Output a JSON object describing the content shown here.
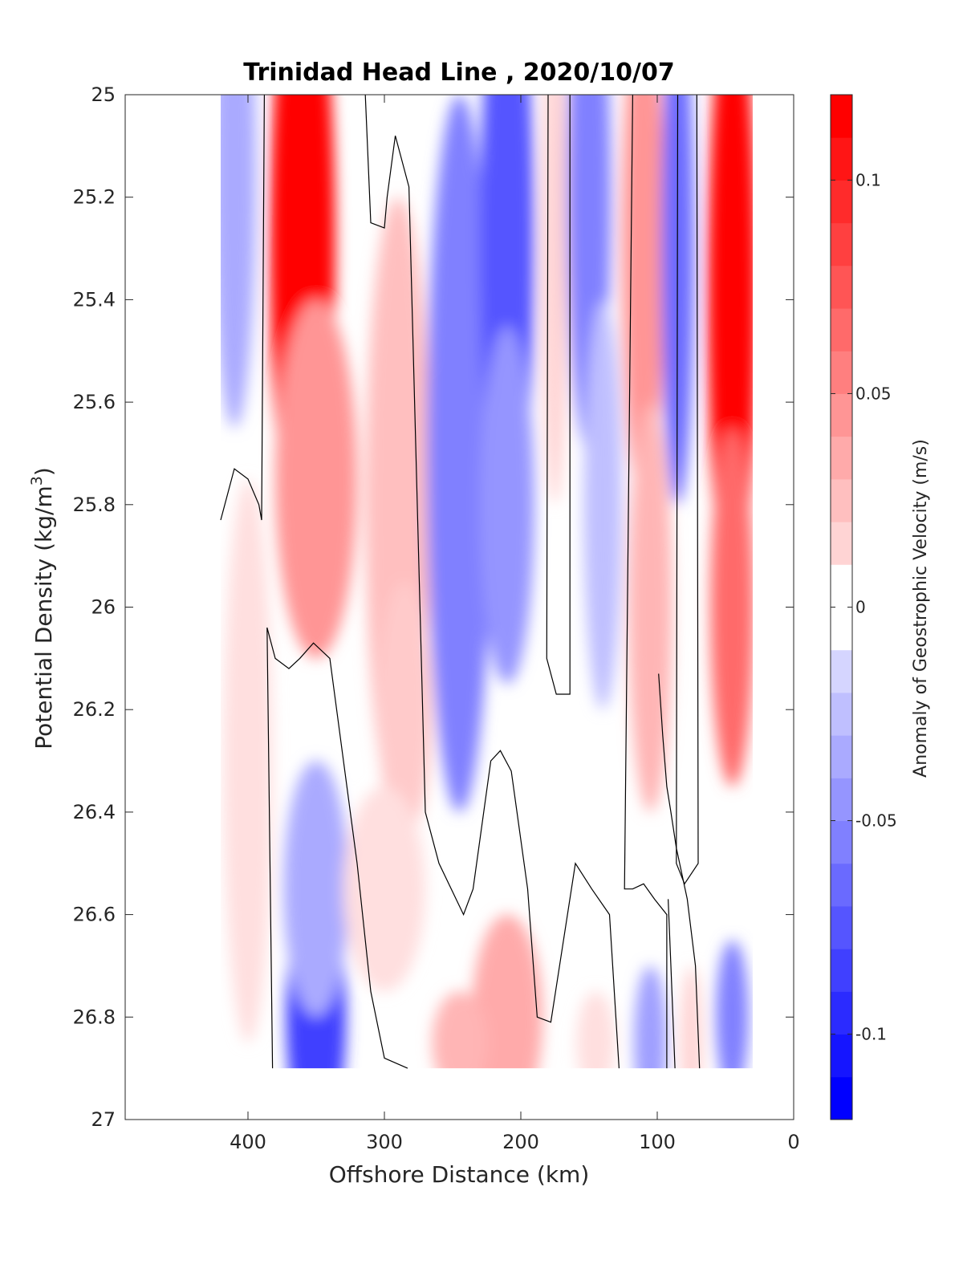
{
  "chart_data": {
    "type": "heatmap",
    "title": "Trinidad Head Line , 2020/10/07",
    "xlabel": "Offshore Distance (km)",
    "ylabel": "Potential Density (kg/m",
    "ylabel_sup": "3",
    "ylabel_close": ")",
    "colorbar_label": "Anomaly of Geostrophic Velocity (m/s)",
    "xlim": [
      490,
      0
    ],
    "ylim": [
      25,
      27
    ],
    "x_reversed": true,
    "y_reversed": true,
    "x_ticks": [
      400,
      300,
      200,
      100,
      0
    ],
    "x_tick_labels": [
      "400",
      "300",
      "200",
      "100",
      "0"
    ],
    "y_ticks": [
      25,
      25.2,
      25.4,
      25.6,
      25.8,
      26,
      26.2,
      26.4,
      26.6,
      26.8,
      27
    ],
    "y_tick_labels": [
      "25",
      "25.2",
      "25.4",
      "25.6",
      "25.8",
      "26",
      "26.2",
      "26.4",
      "26.6",
      "26.8",
      "27"
    ],
    "colorbar_range": [
      -0.12,
      0.12
    ],
    "colorbar_levels": 24,
    "colorbar_ticks": [
      0.1,
      0.05,
      0,
      -0.05,
      -0.1
    ],
    "colorbar_tick_labels": [
      "0.1",
      "0.05",
      "0",
      "-0.05",
      "-0.1"
    ],
    "colormap": "blue-white-red",
    "colors": {
      "negative": "#0000ff",
      "zero": "#ffffff",
      "positive": "#ff0000"
    },
    "data_extent": {
      "x": [
        420,
        30
      ],
      "y": [
        25,
        26.9
      ]
    },
    "grid": false,
    "features": [
      {
        "x": 410,
        "y": 25.15,
        "value": -0.04,
        "rx": 16,
        "ry": 0.5
      },
      {
        "x": 360,
        "y": 25.3,
        "value": 0.12,
        "rx": 24,
        "ry": 0.6
      },
      {
        "x": 350,
        "y": 25.75,
        "value": 0.05,
        "rx": 30,
        "ry": 0.35
      },
      {
        "x": 290,
        "y": 25.8,
        "value": 0.03,
        "rx": 24,
        "ry": 0.6
      },
      {
        "x": 285,
        "y": 26.2,
        "value": 0.025,
        "rx": 20,
        "ry": 0.25
      },
      {
        "x": 245,
        "y": 25.7,
        "value": -0.06,
        "rx": 24,
        "ry": 0.7
      },
      {
        "x": 210,
        "y": 25.3,
        "value": -0.08,
        "rx": 20,
        "ry": 0.6
      },
      {
        "x": 210,
        "y": 25.8,
        "value": -0.05,
        "rx": 20,
        "ry": 0.35
      },
      {
        "x": 175,
        "y": 25.3,
        "value": 0.02,
        "rx": 10,
        "ry": 0.5
      },
      {
        "x": 150,
        "y": 25.2,
        "value": -0.06,
        "rx": 16,
        "ry": 0.5
      },
      {
        "x": 140,
        "y": 25.8,
        "value": -0.03,
        "rx": 14,
        "ry": 0.4
      },
      {
        "x": 110,
        "y": 25.3,
        "value": 0.05,
        "rx": 16,
        "ry": 0.5
      },
      {
        "x": 105,
        "y": 26.0,
        "value": 0.035,
        "rx": 16,
        "ry": 0.4
      },
      {
        "x": 85,
        "y": 25.3,
        "value": -0.07,
        "rx": 12,
        "ry": 0.5
      },
      {
        "x": 45,
        "y": 25.4,
        "value": 0.12,
        "rx": 18,
        "ry": 0.6
      },
      {
        "x": 45,
        "y": 26.0,
        "value": 0.07,
        "rx": 16,
        "ry": 0.35
      },
      {
        "x": 400,
        "y": 26.3,
        "value": 0.015,
        "rx": 18,
        "ry": 0.55
      },
      {
        "x": 350,
        "y": 26.8,
        "value": -0.09,
        "rx": 22,
        "ry": 0.25
      },
      {
        "x": 350,
        "y": 26.55,
        "value": -0.04,
        "rx": 24,
        "ry": 0.25
      },
      {
        "x": 300,
        "y": 26.55,
        "value": 0.015,
        "rx": 30,
        "ry": 0.2
      },
      {
        "x": 210,
        "y": 26.8,
        "value": 0.04,
        "rx": 26,
        "ry": 0.2
      },
      {
        "x": 245,
        "y": 26.85,
        "value": 0.035,
        "rx": 20,
        "ry": 0.1
      },
      {
        "x": 145,
        "y": 26.85,
        "value": 0.015,
        "rx": 14,
        "ry": 0.1
      },
      {
        "x": 105,
        "y": 26.85,
        "value": -0.045,
        "rx": 12,
        "ry": 0.15
      },
      {
        "x": 75,
        "y": 26.85,
        "value": 0.02,
        "rx": 8,
        "ry": 0.15
      },
      {
        "x": 45,
        "y": 26.8,
        "value": -0.06,
        "rx": 12,
        "ry": 0.15
      }
    ],
    "zero_contours": [
      [
        [
          420,
          25.83
        ],
        [
          410,
          25.73
        ],
        [
          400,
          25.75
        ],
        [
          392,
          25.8
        ],
        [
          390,
          25.83
        ],
        [
          388,
          25.0
        ]
      ],
      [
        [
          314,
          25.0
        ],
        [
          310,
          25.25
        ],
        [
          300,
          25.26
        ],
        [
          298,
          25.2
        ],
        [
          292,
          25.08
        ],
        [
          282,
          25.18
        ],
        [
          270,
          26.4
        ],
        [
          260,
          26.5
        ],
        [
          242,
          26.6
        ],
        [
          235,
          26.55
        ],
        [
          222,
          26.3
        ],
        [
          215,
          26.28
        ],
        [
          207,
          26.32
        ],
        [
          195,
          26.55
        ],
        [
          188,
          26.8
        ],
        [
          178,
          26.81
        ],
        [
          160,
          26.5
        ],
        [
          148,
          26.55
        ],
        [
          135,
          26.6
        ],
        [
          128,
          26.9
        ]
      ],
      [
        [
          180,
          25.0
        ],
        [
          181,
          26.1
        ],
        [
          174,
          26.17
        ],
        [
          164,
          26.17
        ],
        [
          164,
          25.0
        ]
      ],
      [
        [
          118,
          25.0
        ],
        [
          124,
          26.55
        ],
        [
          118,
          26.55
        ],
        [
          110,
          26.54
        ],
        [
          102,
          26.57
        ],
        [
          93,
          26.6
        ],
        [
          93,
          26.9
        ]
      ],
      [
        [
          85,
          25.0
        ],
        [
          86,
          26.5
        ],
        [
          80,
          26.54
        ],
        [
          70,
          26.5
        ],
        [
          71,
          25.0
        ]
      ],
      [
        [
          382,
          26.9
        ],
        [
          386,
          26.04
        ],
        [
          380,
          26.1
        ],
        [
          370,
          26.12
        ],
        [
          362,
          26.1
        ],
        [
          352,
          26.07
        ],
        [
          340,
          26.1
        ],
        [
          320,
          26.5
        ],
        [
          310,
          26.75
        ],
        [
          300,
          26.88
        ],
        [
          283,
          26.9
        ]
      ],
      [
        [
          69,
          26.9
        ],
        [
          72,
          26.7
        ],
        [
          78,
          26.57
        ],
        [
          86,
          26.47
        ],
        [
          90,
          26.4
        ],
        [
          93,
          26.35
        ],
        [
          96,
          26.25
        ],
        [
          99,
          26.13
        ]
      ],
      [
        [
          87,
          26.9
        ],
        [
          90,
          26.7
        ],
        [
          92,
          26.57
        ]
      ]
    ]
  }
}
